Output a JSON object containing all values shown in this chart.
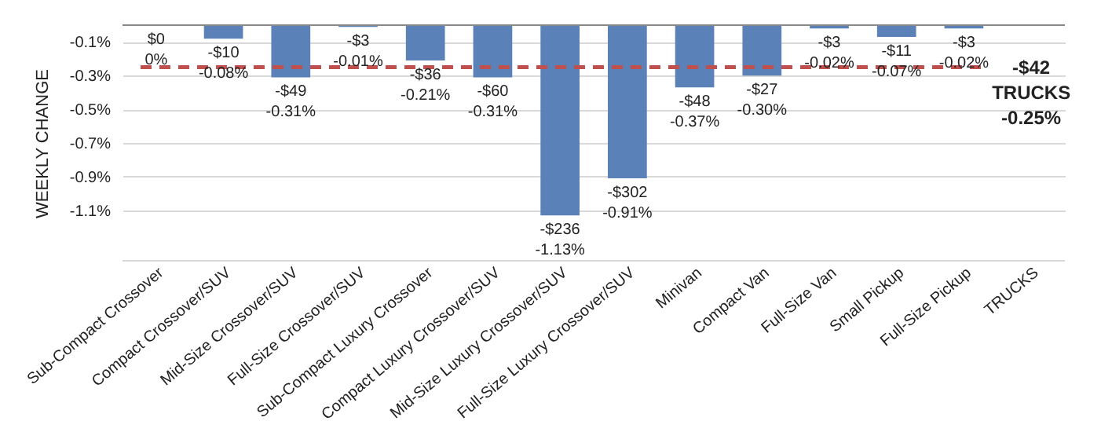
{
  "chart_data": {
    "type": "bar",
    "ylabel": "WEEKLY CHANGE",
    "categories": [
      "Sub-Compact Crossover",
      "Compact Crossover/SUV",
      "Mid-Size Crossover/SUV",
      "Full-Size Crossover/SUV",
      "Sub-Compact Luxury Crossover",
      "Compact Luxury Crossover/SUV",
      "Mid-Size Luxury Crossover/SUV",
      "Full-Size Luxury Crossover/SUV",
      "Minivan",
      "Compact Van",
      "Full-Size Van",
      "Small Pickup",
      "Full-Size Pickup",
      "TRUCKS"
    ],
    "values": [
      0,
      -0.08,
      -0.31,
      -0.01,
      -0.21,
      -0.31,
      -1.13,
      -0.91,
      -0.37,
      -0.3,
      -0.02,
      -0.07,
      -0.02,
      null
    ],
    "value_labels": [
      "$0\n0%",
      "-$10\n-0.08%",
      "-$49\n-0.31%",
      "-$3\n-0.01%",
      "-$36\n-0.21%",
      "-$60\n-0.31%",
      "-$236\n-1.13%",
      "-$302\n-0.91%",
      "-$48\n-0.37%",
      "-$27\n-0.30%",
      "-$3\n-0.02%",
      "-$11\n-0.07%",
      "-$3\n-0.02%",
      null
    ],
    "color": "#5b82b8",
    "ylim": [
      -1.4,
      0
    ],
    "yticks": [
      {
        "value": -0.1,
        "label": "-0.1%"
      },
      {
        "value": -0.3,
        "label": "-0.3%"
      },
      {
        "value": -0.5,
        "label": "-0.5%"
      },
      {
        "value": -0.7,
        "label": "-0.7%"
      },
      {
        "value": -0.9,
        "label": "-0.9%"
      },
      {
        "value": -1.1,
        "label": "-1.1%"
      }
    ],
    "grid": "y",
    "ref_lines": [
      {
        "axis": "y",
        "value": -0.25,
        "label": "-$42\nTRUCKS\n-0.25%",
        "color": "#c0504d",
        "line_style": "dashed"
      }
    ]
  }
}
